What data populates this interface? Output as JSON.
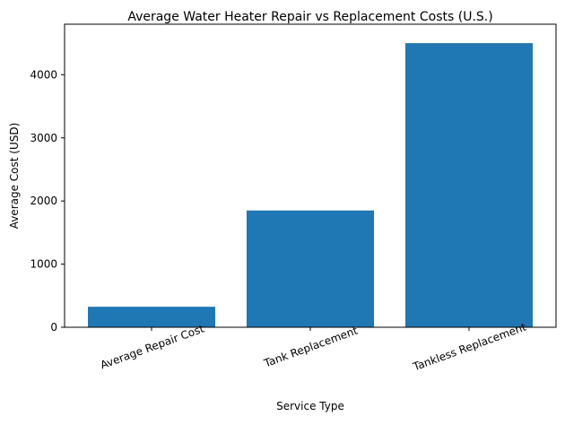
{
  "chart_data": {
    "type": "bar",
    "title": "Average Water Heater Repair vs Replacement Costs (U.S.)",
    "xlabel": "Service Type",
    "ylabel": "Average Cost (USD)",
    "categories": [
      "Average Repair Cost",
      "Tank Replacement",
      "Tankless Replacement"
    ],
    "values": [
      325,
      1850,
      4500
    ],
    "ylim": [
      0,
      4800
    ],
    "yticks": [
      0,
      1000,
      2000,
      3000,
      4000
    ],
    "grid": false,
    "bar_color": "#1f77b4"
  }
}
